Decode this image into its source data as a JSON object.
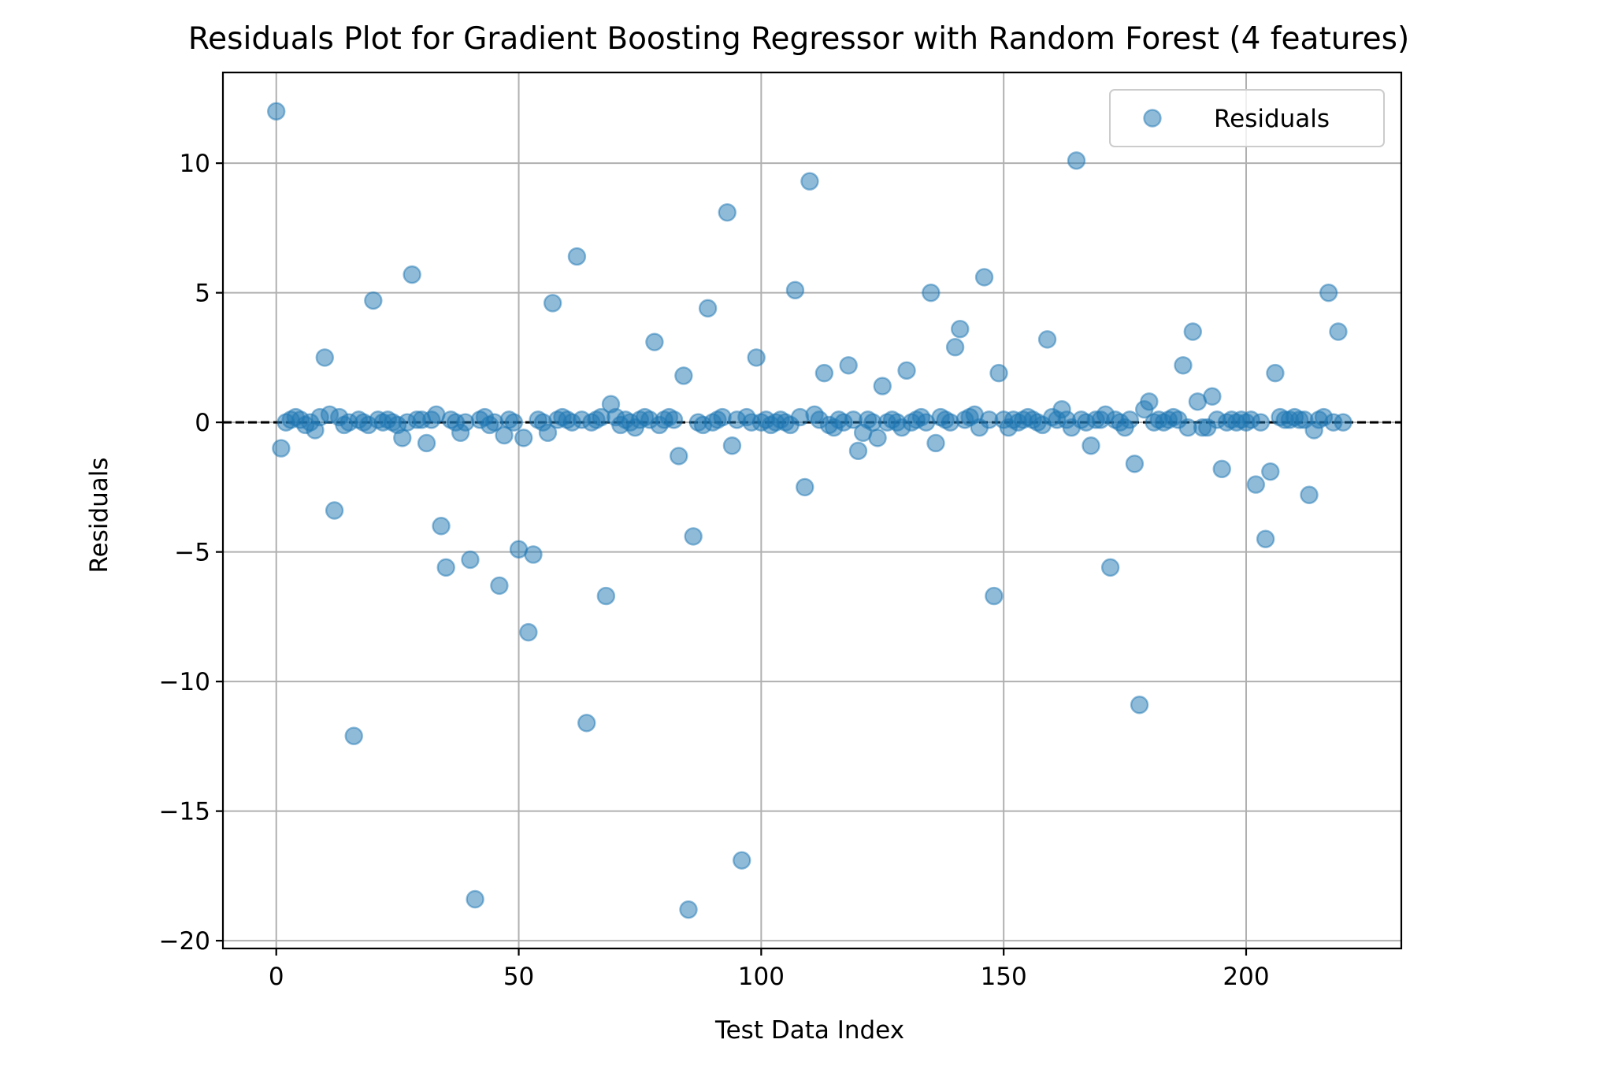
{
  "chart_data": {
    "type": "scatter",
    "title": "Residuals Plot for Gradient Boosting Regressor with Random Forest (4 features)",
    "xlabel": "Test Data Index",
    "ylabel": "Residuals",
    "xlim": [
      -11,
      232
    ],
    "ylim": [
      -20.3,
      13.5
    ],
    "xticks": [
      0,
      50,
      100,
      150,
      200
    ],
    "yticks": [
      10,
      5,
      0,
      -5,
      -10,
      -15,
      -20
    ],
    "xtick_labels": [
      "0",
      "50",
      "100",
      "150",
      "200"
    ],
    "ytick_labels": [
      "10",
      "5",
      "0",
      "−5",
      "−10",
      "−15",
      "−20"
    ],
    "grid": true,
    "legend": {
      "position": "top-right",
      "entries": [
        "Residuals"
      ]
    },
    "reference_line": {
      "y": 0,
      "style": "dashed",
      "color": "#000000"
    },
    "series": [
      {
        "name": "Residuals",
        "color": "#1f77b4",
        "alpha": 0.5,
        "points": [
          [
            0,
            12.0
          ],
          [
            1,
            -1.0
          ],
          [
            2,
            0.0
          ],
          [
            3,
            0.1
          ],
          [
            4,
            0.2
          ],
          [
            5,
            0.1
          ],
          [
            6,
            -0.1
          ],
          [
            7,
            0.0
          ],
          [
            8,
            -0.3
          ],
          [
            9,
            0.2
          ],
          [
            10,
            2.5
          ],
          [
            11,
            0.3
          ],
          [
            12,
            -3.4
          ],
          [
            13,
            0.2
          ],
          [
            14,
            -0.1
          ],
          [
            15,
            0.0
          ],
          [
            16,
            -12.1
          ],
          [
            17,
            0.1
          ],
          [
            18,
            0.0
          ],
          [
            19,
            -0.1
          ],
          [
            20,
            4.7
          ],
          [
            21,
            0.1
          ],
          [
            22,
            0.0
          ],
          [
            23,
            0.1
          ],
          [
            24,
            0.0
          ],
          [
            25,
            -0.1
          ],
          [
            26,
            -0.6
          ],
          [
            27,
            0.0
          ],
          [
            28,
            5.7
          ],
          [
            29,
            0.1
          ],
          [
            30,
            0.1
          ],
          [
            31,
            -0.8
          ],
          [
            32,
            0.1
          ],
          [
            33,
            0.3
          ],
          [
            34,
            -4.0
          ],
          [
            35,
            -5.6
          ],
          [
            36,
            0.1
          ],
          [
            37,
            0.0
          ],
          [
            38,
            -0.4
          ],
          [
            39,
            0.0
          ],
          [
            40,
            -5.3
          ],
          [
            41,
            -18.4
          ],
          [
            42,
            0.1
          ],
          [
            43,
            0.2
          ],
          [
            44,
            -0.1
          ],
          [
            45,
            0.0
          ],
          [
            46,
            -6.3
          ],
          [
            47,
            -0.5
          ],
          [
            48,
            0.1
          ],
          [
            49,
            0.0
          ],
          [
            50,
            -4.9
          ],
          [
            51,
            -0.6
          ],
          [
            52,
            -8.1
          ],
          [
            53,
            -5.1
          ],
          [
            54,
            0.1
          ],
          [
            55,
            0.0
          ],
          [
            56,
            -0.4
          ],
          [
            57,
            4.6
          ],
          [
            58,
            0.1
          ],
          [
            59,
            0.2
          ],
          [
            60,
            0.1
          ],
          [
            61,
            0.0
          ],
          [
            62,
            6.4
          ],
          [
            63,
            0.1
          ],
          [
            64,
            -11.6
          ],
          [
            65,
            0.0
          ],
          [
            66,
            0.1
          ],
          [
            67,
            0.2
          ],
          [
            68,
            -6.7
          ],
          [
            69,
            0.7
          ],
          [
            70,
            0.2
          ],
          [
            71,
            -0.1
          ],
          [
            72,
            0.1
          ],
          [
            73,
            0.0
          ],
          [
            74,
            -0.2
          ],
          [
            75,
            0.1
          ],
          [
            76,
            0.2
          ],
          [
            77,
            0.1
          ],
          [
            78,
            3.1
          ],
          [
            79,
            -0.1
          ],
          [
            80,
            0.1
          ],
          [
            81,
            0.2
          ],
          [
            82,
            0.1
          ],
          [
            83,
            -1.3
          ],
          [
            84,
            1.8
          ],
          [
            85,
            -18.8
          ],
          [
            86,
            -4.4
          ],
          [
            87,
            0.0
          ],
          [
            88,
            -0.1
          ],
          [
            89,
            4.4
          ],
          [
            90,
            0.0
          ],
          [
            91,
            0.1
          ],
          [
            92,
            0.2
          ],
          [
            93,
            8.1
          ],
          [
            94,
            -0.9
          ],
          [
            95,
            0.1
          ],
          [
            96,
            -16.9
          ],
          [
            97,
            0.2
          ],
          [
            98,
            0.0
          ],
          [
            99,
            2.5
          ],
          [
            100,
            0.0
          ],
          [
            101,
            0.1
          ],
          [
            102,
            -0.1
          ],
          [
            103,
            0.0
          ],
          [
            104,
            0.1
          ],
          [
            105,
            0.0
          ],
          [
            106,
            -0.1
          ],
          [
            107,
            5.1
          ],
          [
            108,
            0.2
          ],
          [
            109,
            -2.5
          ],
          [
            110,
            9.3
          ],
          [
            111,
            0.3
          ],
          [
            112,
            0.1
          ],
          [
            113,
            1.9
          ],
          [
            114,
            -0.1
          ],
          [
            115,
            -0.2
          ],
          [
            116,
            0.1
          ],
          [
            117,
            0.0
          ],
          [
            118,
            2.2
          ],
          [
            119,
            0.1
          ],
          [
            120,
            -1.1
          ],
          [
            121,
            -0.4
          ],
          [
            122,
            0.1
          ],
          [
            123,
            0.0
          ],
          [
            124,
            -0.6
          ],
          [
            125,
            1.4
          ],
          [
            126,
            0.0
          ],
          [
            127,
            0.1
          ],
          [
            128,
            0.0
          ],
          [
            129,
            -0.2
          ],
          [
            130,
            2.0
          ],
          [
            131,
            0.0
          ],
          [
            132,
            0.1
          ],
          [
            133,
            0.2
          ],
          [
            134,
            0.0
          ],
          [
            135,
            5.0
          ],
          [
            136,
            -0.8
          ],
          [
            137,
            0.2
          ],
          [
            138,
            0.1
          ],
          [
            139,
            0.0
          ],
          [
            140,
            2.9
          ],
          [
            141,
            3.6
          ],
          [
            142,
            0.1
          ],
          [
            143,
            0.2
          ],
          [
            144,
            0.3
          ],
          [
            145,
            -0.2
          ],
          [
            146,
            5.6
          ],
          [
            147,
            0.1
          ],
          [
            148,
            -6.7
          ],
          [
            149,
            1.9
          ],
          [
            150,
            0.1
          ],
          [
            151,
            -0.2
          ],
          [
            152,
            0.1
          ],
          [
            153,
            0.0
          ],
          [
            154,
            0.1
          ],
          [
            155,
            0.2
          ],
          [
            156,
            0.1
          ],
          [
            157,
            0.0
          ],
          [
            158,
            -0.1
          ],
          [
            159,
            3.2
          ],
          [
            160,
            0.2
          ],
          [
            161,
            0.1
          ],
          [
            162,
            0.5
          ],
          [
            163,
            0.1
          ],
          [
            164,
            -0.2
          ],
          [
            165,
            10.1
          ],
          [
            166,
            0.1
          ],
          [
            167,
            0.0
          ],
          [
            168,
            -0.9
          ],
          [
            169,
            0.1
          ],
          [
            170,
            0.1
          ],
          [
            171,
            0.3
          ],
          [
            172,
            -5.6
          ],
          [
            173,
            0.1
          ],
          [
            174,
            0.0
          ],
          [
            175,
            -0.2
          ],
          [
            176,
            0.1
          ],
          [
            177,
            -1.6
          ],
          [
            178,
            -10.9
          ],
          [
            179,
            0.5
          ],
          [
            180,
            0.8
          ],
          [
            181,
            0.0
          ],
          [
            182,
            0.1
          ],
          [
            183,
            0.0
          ],
          [
            184,
            0.1
          ],
          [
            185,
            0.2
          ],
          [
            186,
            0.1
          ],
          [
            187,
            2.2
          ],
          [
            188,
            -0.2
          ],
          [
            189,
            3.5
          ],
          [
            190,
            0.8
          ],
          [
            191,
            -0.2
          ],
          [
            192,
            -0.2
          ],
          [
            193,
            1.0
          ],
          [
            194,
            0.1
          ],
          [
            195,
            -1.8
          ],
          [
            196,
            0.0
          ],
          [
            197,
            0.1
          ],
          [
            198,
            0.0
          ],
          [
            199,
            0.1
          ],
          [
            200,
            0.0
          ],
          [
            201,
            0.1
          ],
          [
            202,
            -2.4
          ],
          [
            203,
            0.0
          ],
          [
            204,
            -4.5
          ],
          [
            205,
            -1.9
          ],
          [
            206,
            1.9
          ],
          [
            207,
            0.2
          ],
          [
            208,
            0.1
          ],
          [
            209,
            0.1
          ],
          [
            210,
            0.2
          ],
          [
            211,
            0.1
          ],
          [
            212,
            0.1
          ],
          [
            213,
            -2.8
          ],
          [
            214,
            -0.3
          ],
          [
            215,
            0.1
          ],
          [
            216,
            0.2
          ],
          [
            217,
            5.0
          ],
          [
            218,
            0.0
          ],
          [
            219,
            3.5
          ],
          [
            220,
            0.0
          ]
        ]
      }
    ]
  }
}
